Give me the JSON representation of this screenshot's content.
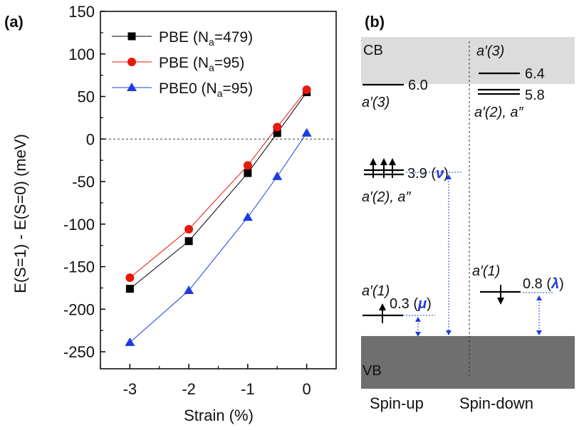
{
  "chart_data": [
    {
      "panel": "(a)",
      "type": "line",
      "xlabel": "Strain (%)",
      "ylabel": "E(S=1) - E(S=0) (meV)",
      "xlim": [
        -3.5,
        0.5
      ],
      "ylim": [
        -270,
        150
      ],
      "xticks": [
        "-3",
        "-2",
        "-1",
        "0"
      ],
      "yticks": [
        "150",
        "100",
        "50",
        "0",
        "-50",
        "-100",
        "-150",
        "-200",
        "-250"
      ],
      "xtick_values": [
        -3,
        -2,
        -1,
        0
      ],
      "ytick_values": [
        150,
        100,
        50,
        0,
        -50,
        -100,
        -150,
        -200,
        -250
      ],
      "reference_line_y": 0,
      "legend_position": "top-left",
      "x": [
        -3,
        -2,
        -1,
        -0.5,
        0
      ],
      "series": [
        {
          "name": "PBE (N",
          "sub": "a",
          "suffix": "=479)",
          "color": "#000000",
          "marker": "square",
          "values": [
            -176,
            -120,
            -40,
            7,
            55
          ]
        },
        {
          "name": "PBE (N",
          "sub": "a",
          "suffix": "=95)",
          "color": "#e8180c",
          "marker": "circle",
          "values": [
            -163,
            -106,
            -31,
            14,
            58
          ]
        },
        {
          "name": "PBE0 (N",
          "sub": "a",
          "suffix": "=95)",
          "color": "#1c3ce0",
          "marker": "triangle",
          "values": [
            -239,
            -178,
            -92,
            -44,
            7
          ]
        }
      ]
    },
    {
      "panel": "(b)",
      "type": "diagram",
      "bands": {
        "cb": "CB",
        "vb": "VB"
      },
      "columns": {
        "left": "Spin-up",
        "right": "Spin-down"
      },
      "spin_up": {
        "a3_label": "a′(3)",
        "a3_value": "6.0",
        "a2_label": "a′(2), a″",
        "a2_value": "3.9 (",
        "a2_greek": "ν",
        "a2_close": ")",
        "a1_label": "a′(1)",
        "a1_value": "0.3 (",
        "a1_greek": "μ",
        "a1_close": ")"
      },
      "spin_down": {
        "a3_label": "a′(3)",
        "a3_value": "6.4",
        "a2_value": "5.8",
        "a2_label": "a′(2), a″",
        "a1_label": "a′(1)",
        "a1_value": "0.8 (",
        "a1_greek": "λ",
        "a1_close": ")"
      }
    }
  ]
}
